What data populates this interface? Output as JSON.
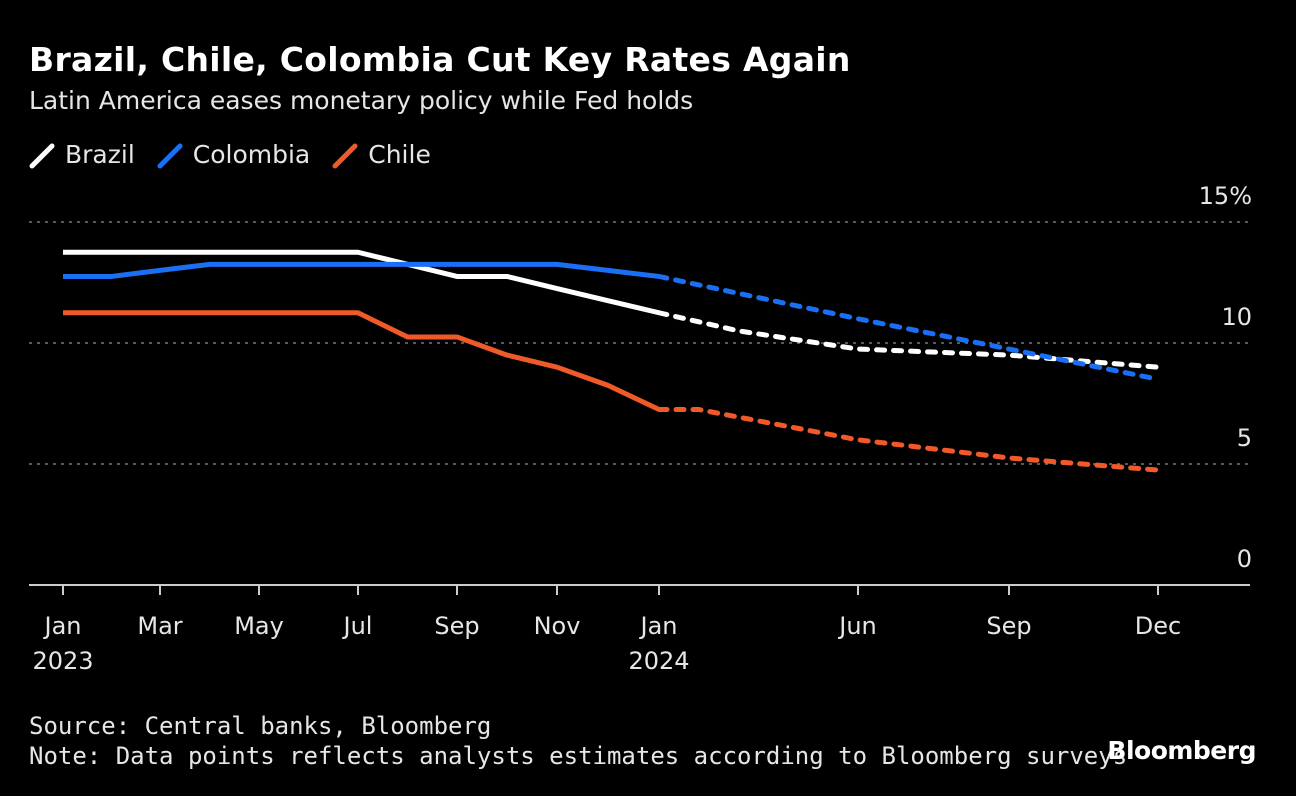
{
  "title": "Brazil, Chile, Colombia Cut Key Rates Again",
  "subtitle": "Latin America eases monetary policy while Fed holds",
  "source": "Source: Central banks, Bloomberg",
  "note": "Note: Data points reflects analysts estimates according to Bloomberg surveys",
  "logo": "Bloomberg",
  "chart_data": {
    "type": "line",
    "title": "Brazil, Chile, Colombia Cut Key Rates Again",
    "subtitle": "Latin America eases monetary policy while Fed holds",
    "ylim": [
      0,
      15
    ],
    "yticks": [
      {
        "value": 0,
        "label": "0"
      },
      {
        "value": 5,
        "label": "5"
      },
      {
        "value": 10,
        "label": "10"
      },
      {
        "value": 15,
        "label": "15%"
      }
    ],
    "xticks": [
      {
        "date": "2023-01",
        "label": "Jan",
        "sub": "2023"
      },
      {
        "date": "2023-03",
        "label": "Mar",
        "sub": ""
      },
      {
        "date": "2023-05",
        "label": "May",
        "sub": ""
      },
      {
        "date": "2023-07",
        "label": "Jul",
        "sub": ""
      },
      {
        "date": "2023-09",
        "label": "Sep",
        "sub": ""
      },
      {
        "date": "2023-11",
        "label": "Nov",
        "sub": ""
      },
      {
        "date": "2024-01",
        "label": "Jan",
        "sub": "2024"
      },
      {
        "date": "2024-06",
        "label": "Jun",
        "sub": ""
      },
      {
        "date": "2024-09",
        "label": "Sep",
        "sub": ""
      },
      {
        "date": "2024-12",
        "label": "Dec",
        "sub": ""
      }
    ],
    "grid": "horizontal dotted",
    "legend_position": "top-left",
    "forecast_start": "2024-01",
    "series": [
      {
        "name": "Brazil",
        "color": "#ffffff",
        "x": [
          "2023-01",
          "2023-07",
          "2023-08",
          "2023-09",
          "2023-10",
          "2023-11",
          "2023-12",
          "2024-01",
          "2024-03",
          "2024-06",
          "2024-09",
          "2024-12"
        ],
        "y": [
          13.75,
          13.75,
          13.25,
          12.75,
          12.75,
          12.25,
          11.75,
          11.25,
          10.5,
          9.75,
          9.5,
          9.0
        ]
      },
      {
        "name": "Colombia",
        "color": "#1a6ff5",
        "x": [
          "2023-01",
          "2023-02",
          "2023-03",
          "2023-04",
          "2023-11",
          "2023-12",
          "2024-01",
          "2024-06",
          "2024-09",
          "2024-12"
        ],
        "y": [
          12.75,
          12.75,
          13.0,
          13.25,
          13.25,
          13.0,
          12.75,
          11.0,
          9.75,
          8.5
        ]
      },
      {
        "name": "Chile",
        "color": "#f05a28",
        "x": [
          "2023-01",
          "2023-07",
          "2023-08",
          "2023-09",
          "2023-10",
          "2023-11",
          "2023-12",
          "2024-01",
          "2024-02",
          "2024-06",
          "2024-09",
          "2024-12"
        ],
        "y": [
          11.25,
          11.25,
          10.25,
          10.25,
          9.5,
          9.0,
          8.25,
          7.25,
          7.25,
          6.0,
          5.25,
          4.75
        ]
      }
    ]
  }
}
